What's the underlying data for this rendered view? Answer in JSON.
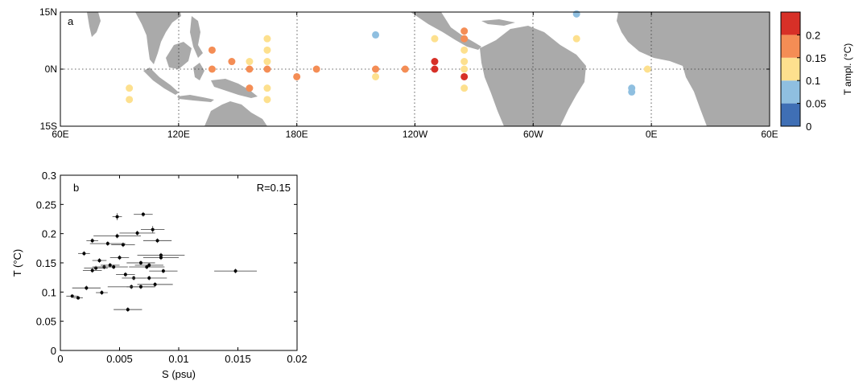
{
  "panels": {
    "a": {
      "label": "a"
    },
    "b": {
      "label": "b",
      "annotation": "R=0.15"
    }
  },
  "colorbar": {
    "title": "T ampl. (°C)",
    "ticks": [
      "0",
      "0.05",
      "0.1",
      "0.15",
      "0.2"
    ],
    "bins": [
      {
        "color": "#3f6fb5"
      },
      {
        "color": "#8fbfe0"
      },
      {
        "color": "#fde08e"
      },
      {
        "color": "#f48d55"
      },
      {
        "color": "#d73027"
      }
    ]
  },
  "chart_data": [
    {
      "type": "scatter",
      "panel": "a",
      "description_source": "map of tropical Pacific/Atlantic/Indian Ocean with buoy sites colored by temperature amplitude",
      "xlabel": "",
      "ylabel": "",
      "x_tick_labels": [
        "60E",
        "120E",
        "180E",
        "120W",
        "60W",
        "0E",
        "60E"
      ],
      "x_ticks": [
        60,
        120,
        180,
        240,
        300,
        360,
        420
      ],
      "y_tick_labels": [
        "15S",
        "0N",
        "15N"
      ],
      "y_ticks": [
        -15,
        0,
        15
      ],
      "xlim": [
        60,
        420
      ],
      "ylim": [
        -15,
        15
      ],
      "grid": "dotted at 120E, 180E, 120W, 60W, 0E and 0N",
      "points": [
        {
          "lon": 95,
          "lat": -5,
          "t": 0.12
        },
        {
          "lon": 95,
          "lat": -8,
          "t": 0.12
        },
        {
          "lon": 137,
          "lat": 5,
          "t": 0.17
        },
        {
          "lon": 137,
          "lat": 0,
          "t": 0.17
        },
        {
          "lon": 147,
          "lat": 2,
          "t": 0.17
        },
        {
          "lon": 156,
          "lat": 0,
          "t": 0.17
        },
        {
          "lon": 156,
          "lat": 2,
          "t": 0.12
        },
        {
          "lon": 156,
          "lat": -5,
          "t": 0.17
        },
        {
          "lon": 165,
          "lat": 8,
          "t": 0.12
        },
        {
          "lon": 165,
          "lat": 5,
          "t": 0.12
        },
        {
          "lon": 165,
          "lat": 2,
          "t": 0.12
        },
        {
          "lon": 165,
          "lat": 0,
          "t": 0.17
        },
        {
          "lon": 165,
          "lat": -5,
          "t": 0.12
        },
        {
          "lon": 165,
          "lat": -8,
          "t": 0.12
        },
        {
          "lon": 180,
          "lat": -2,
          "t": 0.17
        },
        {
          "lon": 190,
          "lat": 0,
          "t": 0.17
        },
        {
          "lon": 220,
          "lat": 9,
          "t": 0.08
        },
        {
          "lon": 220,
          "lat": 0,
          "t": 0.17
        },
        {
          "lon": 220,
          "lat": -2,
          "t": 0.12
        },
        {
          "lon": 235,
          "lat": 0,
          "t": 0.17
        },
        {
          "lon": 250,
          "lat": 8,
          "t": 0.12
        },
        {
          "lon": 250,
          "lat": 2,
          "t": 0.22
        },
        {
          "lon": 250,
          "lat": 0,
          "t": 0.22
        },
        {
          "lon": 265,
          "lat": 10,
          "t": 0.17
        },
        {
          "lon": 265,
          "lat": 8,
          "t": 0.17
        },
        {
          "lon": 265,
          "lat": 5,
          "t": 0.12
        },
        {
          "lon": 265,
          "lat": 2,
          "t": 0.12
        },
        {
          "lon": 265,
          "lat": 0,
          "t": 0.12
        },
        {
          "lon": 265,
          "lat": -2,
          "t": 0.22
        },
        {
          "lon": 265,
          "lat": -5,
          "t": 0.12
        },
        {
          "lon": 322,
          "lat": 14.5,
          "t": 0.08
        },
        {
          "lon": 322,
          "lat": 8,
          "t": 0.12
        },
        {
          "lon": 350,
          "lat": -5,
          "t": 0.08
        },
        {
          "lon": 350,
          "lat": -6,
          "t": 0.08
        },
        {
          "lon": 358,
          "lat": 0,
          "t": 0.12
        }
      ]
    },
    {
      "type": "scatter",
      "panel": "b",
      "xlabel": "S (psu)",
      "ylabel": "T (°C)",
      "xlim": [
        0,
        0.02
      ],
      "ylim": [
        0,
        0.3
      ],
      "x_tick_labels": [
        "0",
        "0.005",
        "0.01",
        "0.015",
        "0.02"
      ],
      "x_ticks": [
        0,
        0.005,
        0.01,
        0.015,
        0.02
      ],
      "y_tick_labels": [
        "0",
        "0.05",
        "0.1",
        "0.15",
        "0.2",
        "0.25",
        "0.3"
      ],
      "y_ticks": [
        0,
        0.05,
        0.1,
        0.15,
        0.2,
        0.25,
        0.3
      ],
      "error_bars": "horizontal (S) and small vertical (T)",
      "points": [
        {
          "s": 0.001,
          "t": 0.093,
          "sx": 0.0005,
          "ty": 0.003
        },
        {
          "s": 0.0015,
          "t": 0.09,
          "sx": 0.0004,
          "ty": 0.003
        },
        {
          "s": 0.002,
          "t": 0.166,
          "sx": 0.0005,
          "ty": 0.004
        },
        {
          "s": 0.0022,
          "t": 0.107,
          "sx": 0.0012,
          "ty": 0.004
        },
        {
          "s": 0.0027,
          "t": 0.137,
          "sx": 0.0008,
          "ty": 0.004
        },
        {
          "s": 0.0027,
          "t": 0.188,
          "sx": 0.0005,
          "ty": 0.004
        },
        {
          "s": 0.003,
          "t": 0.141,
          "sx": 0.001,
          "ty": 0.004
        },
        {
          "s": 0.0033,
          "t": 0.154,
          "sx": 0.0006,
          "ty": 0.004
        },
        {
          "s": 0.0035,
          "t": 0.099,
          "sx": 0.0005,
          "ty": 0.004
        },
        {
          "s": 0.0037,
          "t": 0.143,
          "sx": 0.001,
          "ty": 0.004
        },
        {
          "s": 0.004,
          "t": 0.183,
          "sx": 0.0015,
          "ty": 0.004
        },
        {
          "s": 0.0042,
          "t": 0.146,
          "sx": 0.0008,
          "ty": 0.004
        },
        {
          "s": 0.0045,
          "t": 0.143,
          "sx": 0.0012,
          "ty": 0.004
        },
        {
          "s": 0.0048,
          "t": 0.196,
          "sx": 0.002,
          "ty": 0.004
        },
        {
          "s": 0.0048,
          "t": 0.229,
          "sx": 0.0004,
          "ty": 0.006
        },
        {
          "s": 0.005,
          "t": 0.159,
          "sx": 0.0008,
          "ty": 0.004
        },
        {
          "s": 0.0053,
          "t": 0.181,
          "sx": 0.001,
          "ty": 0.004
        },
        {
          "s": 0.0055,
          "t": 0.13,
          "sx": 0.0008,
          "ty": 0.004
        },
        {
          "s": 0.0057,
          "t": 0.07,
          "sx": 0.0012,
          "ty": 0.004
        },
        {
          "s": 0.006,
          "t": 0.109,
          "sx": 0.002,
          "ty": 0.004
        },
        {
          "s": 0.0062,
          "t": 0.124,
          "sx": 0.001,
          "ty": 0.004
        },
        {
          "s": 0.0065,
          "t": 0.201,
          "sx": 0.0015,
          "ty": 0.004
        },
        {
          "s": 0.0068,
          "t": 0.15,
          "sx": 0.0012,
          "ty": 0.004
        },
        {
          "s": 0.0068,
          "t": 0.109,
          "sx": 0.0012,
          "ty": 0.004
        },
        {
          "s": 0.007,
          "t": 0.233,
          "sx": 0.0008,
          "ty": 0.004
        },
        {
          "s": 0.0073,
          "t": 0.143,
          "sx": 0.0015,
          "ty": 0.004
        },
        {
          "s": 0.0075,
          "t": 0.146,
          "sx": 0.0012,
          "ty": 0.004
        },
        {
          "s": 0.0075,
          "t": 0.124,
          "sx": 0.0015,
          "ty": 0.004
        },
        {
          "s": 0.0078,
          "t": 0.207,
          "sx": 0.001,
          "ty": 0.006
        },
        {
          "s": 0.008,
          "t": 0.113,
          "sx": 0.0015,
          "ty": 0.004
        },
        {
          "s": 0.0082,
          "t": 0.188,
          "sx": 0.0012,
          "ty": 0.004
        },
        {
          "s": 0.0085,
          "t": 0.163,
          "sx": 0.002,
          "ty": 0.004
        },
        {
          "s": 0.0085,
          "t": 0.159,
          "sx": 0.0015,
          "ty": 0.004
        },
        {
          "s": 0.0087,
          "t": 0.136,
          "sx": 0.0012,
          "ty": 0.004
        },
        {
          "s": 0.0148,
          "t": 0.136,
          "sx": 0.0018,
          "ty": 0.004
        }
      ]
    }
  ]
}
